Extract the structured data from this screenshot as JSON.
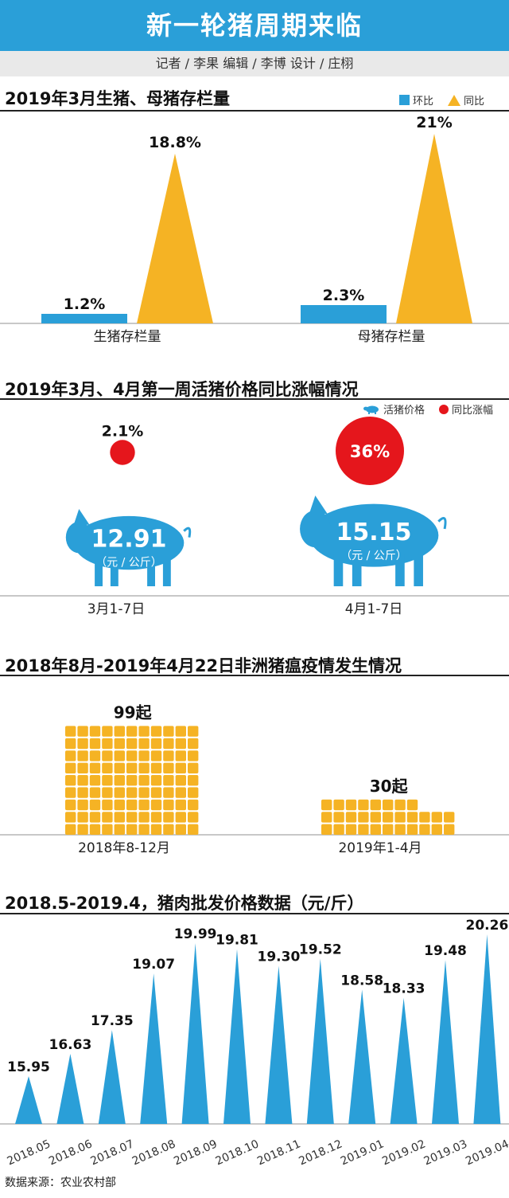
{
  "header": {
    "title": "新一轮猪周期来临",
    "credits": "记者 / 李果    编辑 / 李博    设计 / 庄栩"
  },
  "colors": {
    "blue": "#2a9fd8",
    "orange": "#f5b324",
    "red": "#e5161c"
  },
  "section1": {
    "title": "2019年3月生猪、母猪存栏量",
    "legend_mom": "环比",
    "legend_yoy": "同比"
  },
  "section2": {
    "title": "2019年3月、4月第一周活猪价格同比涨幅情况",
    "legend_price": "活猪价格",
    "legend_growth": "同比涨幅",
    "unit": "（元 / 公斤）"
  },
  "section3": {
    "title": "2018年8月-2019年4月22日非洲猪瘟疫情发生情况"
  },
  "section4": {
    "title": "2018.5-2019.4，猪肉批发价格数据（元/斤）"
  },
  "source": "数据来源：农业农村部",
  "chart_data": [
    {
      "type": "bar",
      "title": "2019年3月生猪、母猪存栏量",
      "categories": [
        "生猪存栏量",
        "母猪存栏量"
      ],
      "series": [
        {
          "name": "环比",
          "values": [
            1.2,
            2.3
          ],
          "labels": [
            "1.2%",
            "2.3%"
          ]
        },
        {
          "name": "同比",
          "values": [
            18.8,
            21
          ],
          "labels": [
            "18.8%",
            "21%"
          ]
        }
      ]
    },
    {
      "type": "scatter",
      "title": "2019年3月、4月第一周活猪价格同比涨幅情况",
      "categories": [
        "3月1-7日",
        "4月1-7日"
      ],
      "series": [
        {
          "name": "活猪价格",
          "values": [
            12.91,
            15.15
          ],
          "labels": [
            "12.91",
            "15.15"
          ]
        },
        {
          "name": "同比涨幅",
          "values": [
            2.1,
            36
          ],
          "labels": [
            "2.1%",
            "36%"
          ]
        }
      ]
    },
    {
      "type": "bar",
      "title": "2018年8月-2019年4月22日非洲猪瘟疫情发生情况",
      "categories": [
        "2018年8-12月",
        "2019年1-4月"
      ],
      "values": [
        99,
        30
      ],
      "labels": [
        "99起",
        "30起"
      ]
    },
    {
      "type": "bar",
      "title": "2018.5-2019.4，猪肉批发价格数据（元/斤）",
      "categories": [
        "2018.05",
        "2018.06",
        "2018.07",
        "2018.08",
        "2018.09",
        "2018.10",
        "2018.11",
        "2018.12",
        "2019.01",
        "2019.02",
        "2019.03",
        "2019.04"
      ],
      "values": [
        15.95,
        16.63,
        17.35,
        19.07,
        19.99,
        19.81,
        19.3,
        19.52,
        18.58,
        18.33,
        19.48,
        20.26
      ],
      "labels": [
        "15.95",
        "16.63",
        "17.35",
        "19.07",
        "19.99",
        "19.81",
        "19.30",
        "19.52",
        "18.58",
        "18.33",
        "19.48",
        "20.26"
      ]
    }
  ]
}
